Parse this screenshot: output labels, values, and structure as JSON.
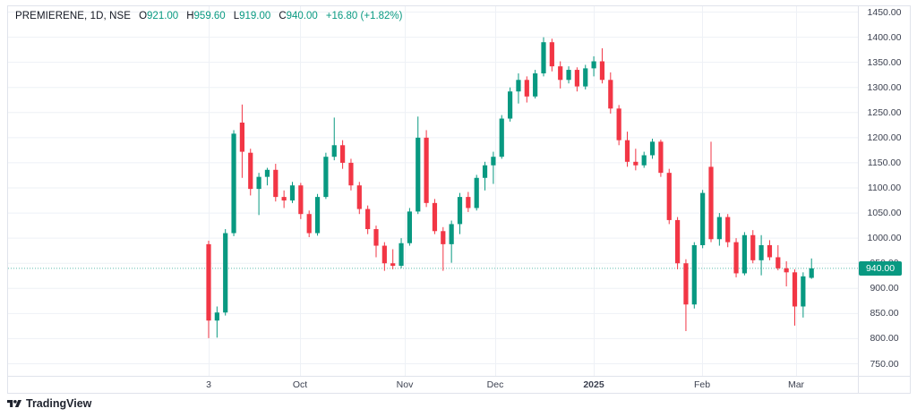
{
  "header": {
    "symbol": "PREMIERENE, 1D, NSE",
    "ohlc": [
      {
        "label": "O",
        "value": "921.00"
      },
      {
        "label": "H",
        "value": "959.60"
      },
      {
        "label": "L",
        "value": "919.00"
      },
      {
        "label": "C",
        "value": "940.00"
      }
    ],
    "change": "+16.80 (+1.82%)"
  },
  "price_scale": {
    "labels": [
      "1450.00",
      "1400.00",
      "1350.00",
      "1300.00",
      "1250.00",
      "1200.00",
      "1150.00",
      "1100.00",
      "1050.00",
      "1000.00",
      "950.00",
      "900.00",
      "850.00",
      "800.00",
      "750.00"
    ],
    "current_price_label": "940.00"
  },
  "time_scale": {
    "ticks": [
      {
        "label": "3",
        "x": 233,
        "major": false
      },
      {
        "label": "Oct",
        "x": 335,
        "major": false
      },
      {
        "label": "Nov",
        "x": 452,
        "major": false
      },
      {
        "label": "Dec",
        "x": 553,
        "major": false
      },
      {
        "label": "2025",
        "x": 663,
        "major": true
      },
      {
        "label": "Feb",
        "x": 784,
        "major": false
      },
      {
        "label": "Mar",
        "x": 889,
        "major": false
      }
    ]
  },
  "branding": {
    "text": "TradingView"
  },
  "colors": {
    "up": "#089981",
    "down": "#f23645",
    "grid": "#eef1f6",
    "border": "#e0e3eb",
    "dotted_line": "#089981",
    "badge_bg": "#089981",
    "badge_text": "#ffffff",
    "header_text": "#131722",
    "axis_text": "#3c4150"
  },
  "chart_data": {
    "type": "candlestick",
    "title": "PREMIERENE, 1D, NSE",
    "symbol": "PREMIERENE",
    "interval": "1D",
    "exchange": "NSE",
    "last_bar": {
      "open": 921.0,
      "high": 959.6,
      "low": 919.0,
      "close": 940.0,
      "change": 16.8,
      "change_pct": 1.82
    },
    "y_axis": {
      "min": 750,
      "max": 1450,
      "step": 50
    },
    "x_ticks": [
      "3",
      "Oct",
      "Nov",
      "Dec",
      "2025",
      "Feb",
      "Mar"
    ],
    "grid": true,
    "legend_position": "none",
    "candles_ohlc": [
      [
        988,
        995,
        801,
        836
      ],
      [
        836,
        864,
        802,
        852
      ],
      [
        852,
        1018,
        846,
        1010
      ],
      [
        1010,
        1215,
        1004,
        1208
      ],
      [
        1230,
        1266,
        1120,
        1172
      ],
      [
        1170,
        1178,
        1085,
        1098
      ],
      [
        1098,
        1130,
        1046,
        1122
      ],
      [
        1122,
        1140,
        1105,
        1136
      ],
      [
        1136,
        1148,
        1073,
        1082
      ],
      [
        1082,
        1095,
        1060,
        1075
      ],
      [
        1075,
        1112,
        1070,
        1105
      ],
      [
        1105,
        1110,
        1038,
        1048
      ],
      [
        1048,
        1055,
        1002,
        1010
      ],
      [
        1010,
        1088,
        1005,
        1082
      ],
      [
        1082,
        1170,
        1078,
        1162
      ],
      [
        1162,
        1240,
        1155,
        1185
      ],
      [
        1185,
        1195,
        1138,
        1150
      ],
      [
        1150,
        1158,
        1095,
        1105
      ],
      [
        1105,
        1112,
        1048,
        1058
      ],
      [
        1058,
        1065,
        1008,
        1018
      ],
      [
        1018,
        1025,
        962,
        985
      ],
      [
        985,
        992,
        935,
        950
      ],
      [
        950,
        978,
        938,
        945
      ],
      [
        945,
        1000,
        940,
        990
      ],
      [
        990,
        1060,
        985,
        1053
      ],
      [
        1053,
        1242,
        1048,
        1200
      ],
      [
        1200,
        1215,
        1062,
        1070
      ],
      [
        1070,
        1078,
        1008,
        1014
      ],
      [
        1014,
        1022,
        935,
        988
      ],
      [
        988,
        1035,
        951,
        1028
      ],
      [
        1028,
        1090,
        1008,
        1082
      ],
      [
        1082,
        1092,
        1052,
        1060
      ],
      [
        1060,
        1126,
        1055,
        1120
      ],
      [
        1120,
        1152,
        1095,
        1145
      ],
      [
        1145,
        1172,
        1108,
        1162
      ],
      [
        1162,
        1245,
        1158,
        1238
      ],
      [
        1238,
        1300,
        1232,
        1292
      ],
      [
        1292,
        1328,
        1268,
        1315
      ],
      [
        1315,
        1322,
        1270,
        1282
      ],
      [
        1282,
        1335,
        1278,
        1328
      ],
      [
        1328,
        1400,
        1322,
        1390
      ],
      [
        1390,
        1397,
        1332,
        1342
      ],
      [
        1342,
        1352,
        1298,
        1315
      ],
      [
        1315,
        1342,
        1308,
        1335
      ],
      [
        1335,
        1340,
        1292,
        1302
      ],
      [
        1302,
        1345,
        1296,
        1338
      ],
      [
        1338,
        1362,
        1322,
        1352
      ],
      [
        1352,
        1378,
        1308,
        1315
      ],
      [
        1315,
        1330,
        1248,
        1258
      ],
      [
        1258,
        1265,
        1185,
        1195
      ],
      [
        1195,
        1212,
        1142,
        1152
      ],
      [
        1152,
        1178,
        1135,
        1145
      ],
      [
        1145,
        1172,
        1140,
        1165
      ],
      [
        1165,
        1198,
        1158,
        1192
      ],
      [
        1192,
        1196,
        1122,
        1130
      ],
      [
        1130,
        1138,
        1028,
        1036
      ],
      [
        1036,
        1042,
        938,
        950
      ],
      [
        950,
        958,
        815,
        868
      ],
      [
        868,
        992,
        860,
        986
      ],
      [
        986,
        1096,
        980,
        1090
      ],
      [
        1142,
        1192,
        992,
        998
      ],
      [
        998,
        1050,
        985,
        1042
      ],
      [
        1042,
        1048,
        982,
        992
      ],
      [
        992,
        1000,
        922,
        930
      ],
      [
        930,
        1012,
        926,
        1006
      ],
      [
        1006,
        1016,
        950,
        956
      ],
      [
        956,
        1006,
        926,
        986
      ],
      [
        986,
        996,
        956,
        962
      ],
      [
        962,
        986,
        936,
        940
      ],
      [
        940,
        954,
        904,
        932
      ],
      [
        932,
        938,
        826,
        864
      ],
      [
        864,
        932,
        842,
        924
      ],
      [
        921,
        959.6,
        919,
        940
      ]
    ]
  }
}
